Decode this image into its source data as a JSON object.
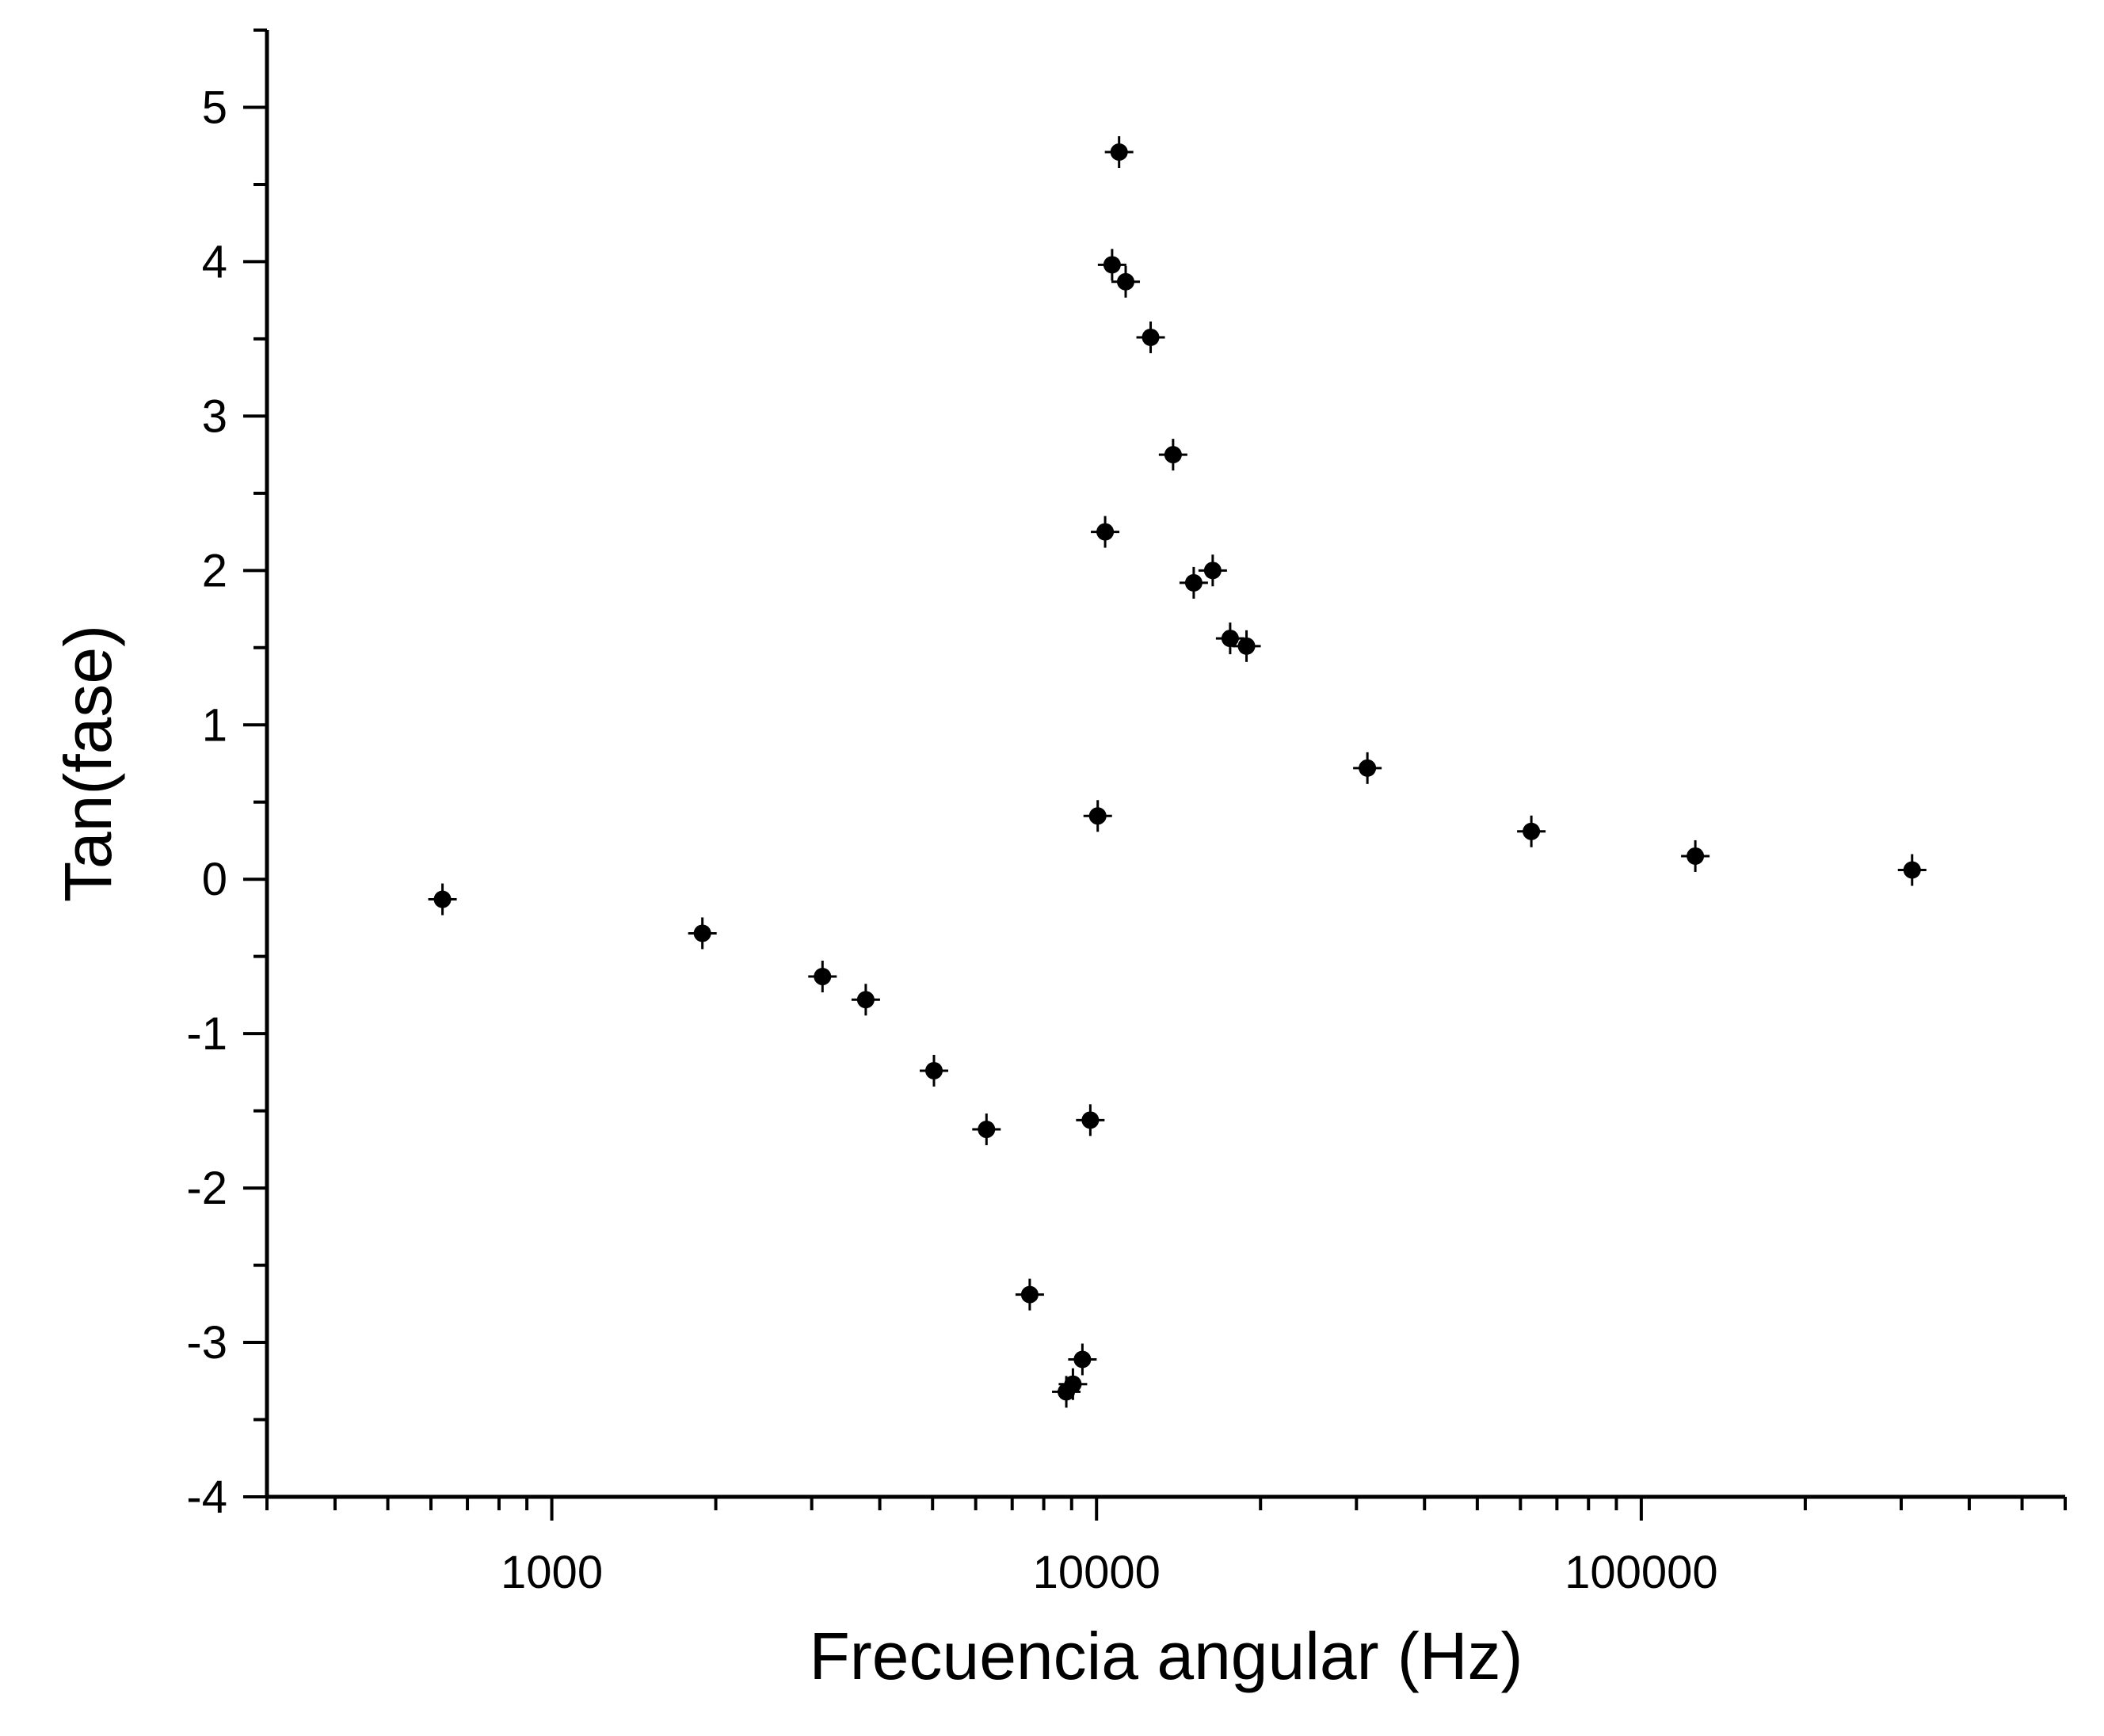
{
  "chart_data": {
    "type": "scatter",
    "xlabel": "Frecuencia angular (Hz)",
    "ylabel": "Tan(fase)",
    "xscale": "log",
    "xlim": [
      300,
      600000
    ],
    "ylim": [
      -4,
      5.5
    ],
    "x_tick_labels": [
      "1000",
      "10000",
      "100000"
    ],
    "x_ticks": [
      1000,
      10000,
      100000
    ],
    "y_tick_labels": [
      "-4",
      "-3",
      "-2",
      "-1",
      "0",
      "1",
      "2",
      "3",
      "4",
      "5"
    ],
    "y_ticks": [
      -4,
      -3,
      -2,
      -1,
      0,
      1,
      2,
      3,
      4,
      5
    ],
    "grid": false,
    "legend": "none",
    "error_bars": true,
    "marker_color": "#000000",
    "points": [
      {
        "x": 630,
        "y": -0.13
      },
      {
        "x": 1890,
        "y": -0.35
      },
      {
        "x": 3140,
        "y": -0.63
      },
      {
        "x": 3770,
        "y": -0.78
      },
      {
        "x": 5030,
        "y": -1.24
      },
      {
        "x": 6280,
        "y": -1.62
      },
      {
        "x": 7540,
        "y": -2.69
      },
      {
        "x": 8800,
        "y": -3.32
      },
      {
        "x": 9050,
        "y": -3.27
      },
      {
        "x": 9420,
        "y": -3.11
      },
      {
        "x": 9740,
        "y": -1.56
      },
      {
        "x": 10050,
        "y": 0.41
      },
      {
        "x": 10370,
        "y": 2.25
      },
      {
        "x": 10680,
        "y": 3.98
      },
      {
        "x": 11000,
        "y": 4.71
      },
      {
        "x": 11310,
        "y": 3.87
      },
      {
        "x": 12570,
        "y": 3.51
      },
      {
        "x": 13820,
        "y": 2.75
      },
      {
        "x": 15080,
        "y": 1.92
      },
      {
        "x": 16340,
        "y": 2.0
      },
      {
        "x": 17590,
        "y": 1.56
      },
      {
        "x": 18850,
        "y": 1.51
      },
      {
        "x": 31420,
        "y": 0.72
      },
      {
        "x": 62830,
        "y": 0.31
      },
      {
        "x": 125660,
        "y": 0.15
      },
      {
        "x": 314160,
        "y": 0.06
      }
    ]
  }
}
